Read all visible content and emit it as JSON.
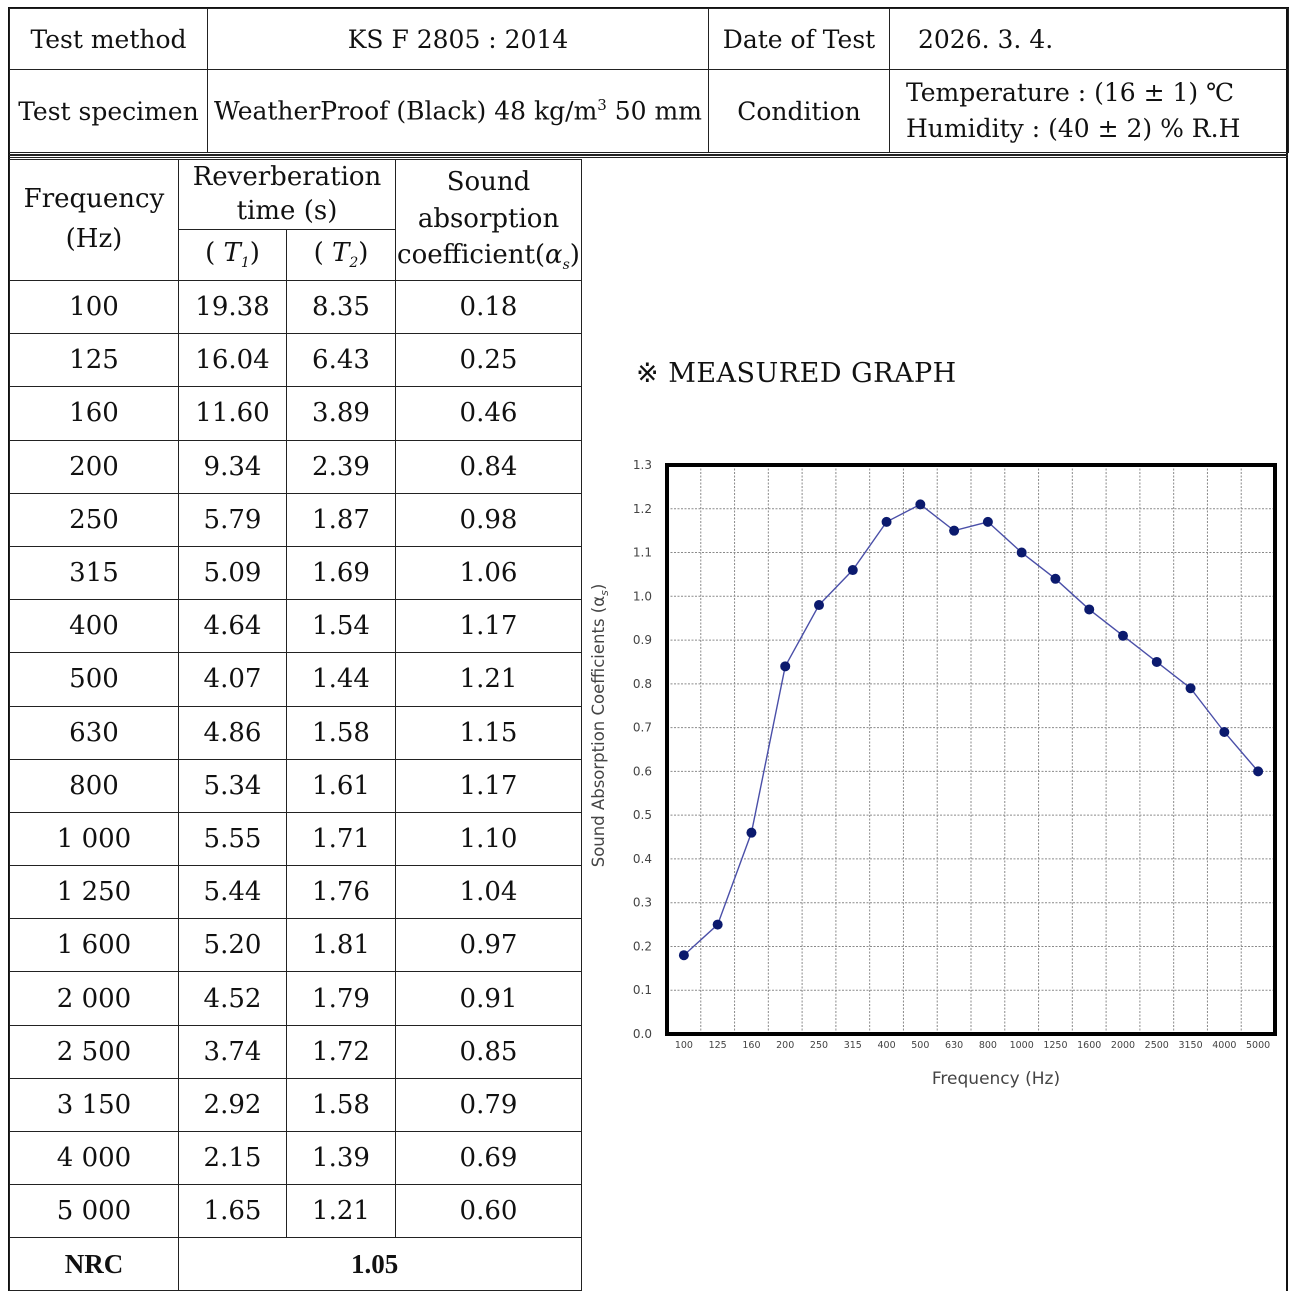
{
  "header": {
    "test_method_label": "Test method",
    "test_method_value": "KS F 2805 : 2014",
    "date_label": "Date of Test",
    "date_value": "2026. 3. 4.",
    "specimen_label": "Test specimen",
    "specimen_value_prefix": "WeatherProof (Black) 48 kg/m",
    "specimen_value_sup": "3",
    "specimen_value_suffix": " 50 mm",
    "condition_label": "Condition",
    "temperature": "Temperature : (16 ± 1) ℃",
    "humidity": "Humidity : (40 ± 2) % R.H"
  },
  "table": {
    "freq_header": "Frequency",
    "freq_unit": "(Hz)",
    "rev_header": "Reverberation",
    "rev_header2": "time (s)",
    "t1_label": "T",
    "t1_sub": "1",
    "t2_label": "T",
    "t2_sub": "2",
    "sac_header1": "Sound",
    "sac_header2": "absorption",
    "sac_header3": "coefficient(",
    "sac_alpha": "α",
    "sac_sub": "s",
    "rows": [
      {
        "freq": "100",
        "t1": "19.38",
        "t2": "8.35",
        "alpha": "0.18"
      },
      {
        "freq": "125",
        "t1": "16.04",
        "t2": "6.43",
        "alpha": "0.25"
      },
      {
        "freq": "160",
        "t1": "11.60",
        "t2": "3.89",
        "alpha": "0.46"
      },
      {
        "freq": "200",
        "t1": "9.34",
        "t2": "2.39",
        "alpha": "0.84"
      },
      {
        "freq": "250",
        "t1": "5.79",
        "t2": "1.87",
        "alpha": "0.98"
      },
      {
        "freq": "315",
        "t1": "5.09",
        "t2": "1.69",
        "alpha": "1.06"
      },
      {
        "freq": "400",
        "t1": "4.64",
        "t2": "1.54",
        "alpha": "1.17"
      },
      {
        "freq": "500",
        "t1": "4.07",
        "t2": "1.44",
        "alpha": "1.21"
      },
      {
        "freq": "630",
        "t1": "4.86",
        "t2": "1.58",
        "alpha": "1.15"
      },
      {
        "freq": "800",
        "t1": "5.34",
        "t2": "1.61",
        "alpha": "1.17"
      },
      {
        "freq": "1 000",
        "t1": "5.55",
        "t2": "1.71",
        "alpha": "1.10"
      },
      {
        "freq": "1 250",
        "t1": "5.44",
        "t2": "1.76",
        "alpha": "1.04"
      },
      {
        "freq": "1 600",
        "t1": "5.20",
        "t2": "1.81",
        "alpha": "0.97"
      },
      {
        "freq": "2 000",
        "t1": "4.52",
        "t2": "1.79",
        "alpha": "0.91"
      },
      {
        "freq": "2 500",
        "t1": "3.74",
        "t2": "1.72",
        "alpha": "0.85"
      },
      {
        "freq": "3 150",
        "t1": "2.92",
        "t2": "1.58",
        "alpha": "0.79"
      },
      {
        "freq": "4 000",
        "t1": "2.15",
        "t2": "1.39",
        "alpha": "0.69"
      },
      {
        "freq": "5 000",
        "t1": "1.65",
        "t2": "1.21",
        "alpha": "0.60"
      }
    ],
    "nrc_label": "NRC",
    "nrc_value": "1.05"
  },
  "graph_note": "※ MEASURED GRAPH",
  "chart_data": {
    "type": "line",
    "title": "",
    "xlabel": "Frequency (Hz)",
    "ylabel": "Sound Absorption Coefficients (α",
    "ylabel_sub": "s",
    "ylabel_close": ")",
    "categories": [
      "100",
      "125",
      "160",
      "200",
      "250",
      "315",
      "400",
      "500",
      "630",
      "800",
      "1000",
      "1250",
      "1600",
      "2000",
      "2500",
      "3150",
      "4000",
      "5000"
    ],
    "values": [
      0.18,
      0.25,
      0.46,
      0.84,
      0.98,
      1.06,
      1.17,
      1.21,
      1.15,
      1.17,
      1.1,
      1.04,
      0.97,
      0.91,
      0.85,
      0.79,
      0.69,
      0.6
    ],
    "ylim": [
      0.0,
      1.3
    ],
    "yticks": [
      "0.0",
      "0.1",
      "0.2",
      "0.3",
      "0.4",
      "0.5",
      "0.6",
      "0.7",
      "0.8",
      "0.9",
      "1.0",
      "1.1",
      "1.2",
      "1.3"
    ],
    "grid": true,
    "line_color": "#4a4fa8",
    "marker_color": "#0b1a6e"
  }
}
